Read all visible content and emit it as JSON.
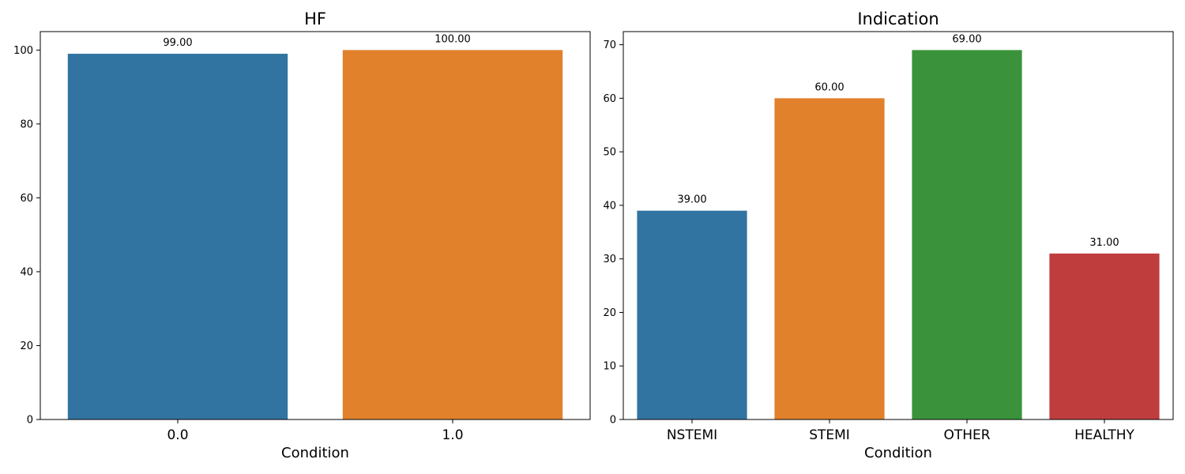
{
  "chart_data": [
    {
      "type": "bar",
      "title": "HF",
      "xlabel": "Condition",
      "ylabel": "",
      "categories": [
        "0.0",
        "1.0"
      ],
      "values": [
        99,
        100
      ],
      "value_labels": [
        "99.00",
        "100.00"
      ],
      "colors": [
        "#3274a1",
        "#e1812c"
      ],
      "ylim": [
        0,
        105
      ],
      "yticks": [
        0,
        20,
        40,
        60,
        80,
        100
      ],
      "grid": false,
      "legend": "none"
    },
    {
      "type": "bar",
      "title": "Indication",
      "xlabel": "Condition",
      "ylabel": "",
      "categories": [
        "NSTEMI",
        "STEMI",
        "OTHER",
        "HEALTHY"
      ],
      "values": [
        39,
        60,
        69,
        31
      ],
      "value_labels": [
        "39.00",
        "60.00",
        "69.00",
        "31.00"
      ],
      "colors": [
        "#3274a1",
        "#e1812c",
        "#3a923a",
        "#c03d3e"
      ],
      "ylim": [
        0,
        72.45
      ],
      "yticks": [
        0,
        10,
        20,
        30,
        40,
        50,
        60,
        70
      ],
      "grid": false,
      "legend": "none"
    }
  ]
}
